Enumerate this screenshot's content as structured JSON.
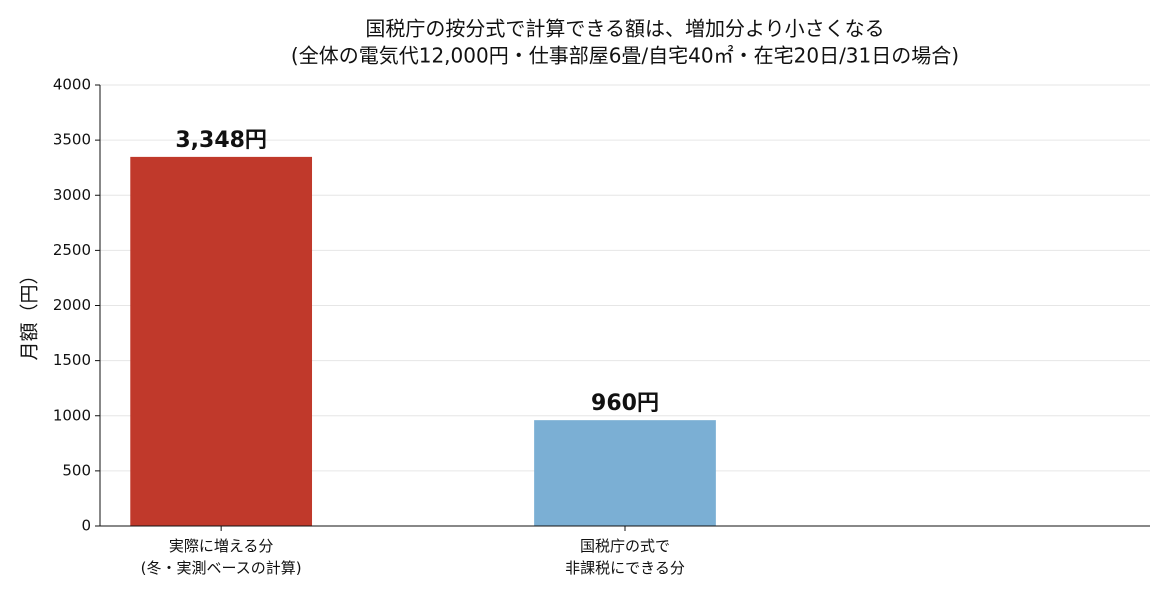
{
  "chart_data": {
    "type": "bar",
    "title": "国税庁の按分式で計算できる額は、増加分より小さくなる",
    "subtitle": "(全体の電気代12,000円・仕事部屋6畳/自宅40㎡・在宅20日/31日の場合)",
    "y_label": "月額（円）",
    "categories": [
      "実際に増える分\n(冬・実測ベースの計算)",
      "国税庁の式で\n非課税にできる分"
    ],
    "values": [
      3348,
      960
    ],
    "value_labels": [
      "3,348円",
      "960円"
    ],
    "colors": [
      "#c0392b",
      "#7bafd4"
    ],
    "ylim": [
      0,
      4000
    ],
    "yticks": [
      0,
      500,
      1000,
      1500,
      2000,
      2500,
      3000,
      3500,
      4000
    ],
    "grid": true
  }
}
